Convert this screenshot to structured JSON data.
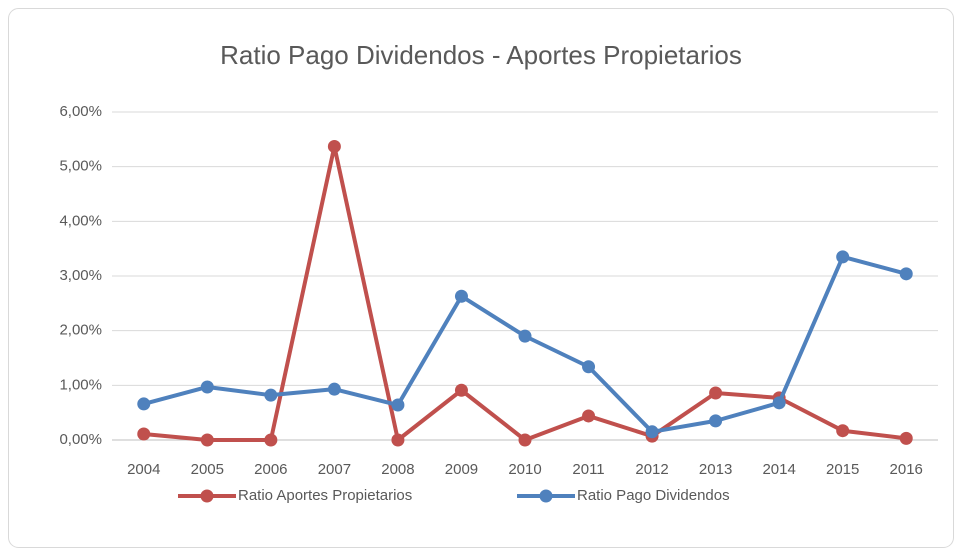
{
  "chart_data": {
    "type": "line",
    "title": "Ratio Pago Dividendos - Aportes Propietarios",
    "categories": [
      "2004",
      "2005",
      "2006",
      "2007",
      "2008",
      "2009",
      "2010",
      "2011",
      "2012",
      "2013",
      "2014",
      "2015",
      "2016"
    ],
    "series": [
      {
        "name": "Ratio Aportes Propietarios",
        "color": "#c0504d",
        "values": [
          0.11,
          0.0,
          0.0,
          5.37,
          0.0,
          0.91,
          0.0,
          0.44,
          0.07,
          0.86,
          0.77,
          0.17,
          0.03
        ]
      },
      {
        "name": "Ratio Pago Dividendos",
        "color": "#4f81bd",
        "values": [
          0.66,
          0.97,
          0.82,
          0.93,
          0.64,
          2.63,
          1.9,
          1.34,
          0.15,
          0.35,
          0.68,
          3.35,
          3.04
        ]
      }
    ],
    "ylim": [
      0,
      6
    ],
    "yticks": [
      {
        "value": 0,
        "label": "0,00%"
      },
      {
        "value": 1,
        "label": "1,00%"
      },
      {
        "value": 2,
        "label": "2,00%"
      },
      {
        "value": 3,
        "label": "3,00%"
      },
      {
        "value": 4,
        "label": "4,00%"
      },
      {
        "value": 5,
        "label": "5,00%"
      },
      {
        "value": 6,
        "label": "6,00%"
      }
    ],
    "grid": true,
    "legend": "bottom"
  }
}
